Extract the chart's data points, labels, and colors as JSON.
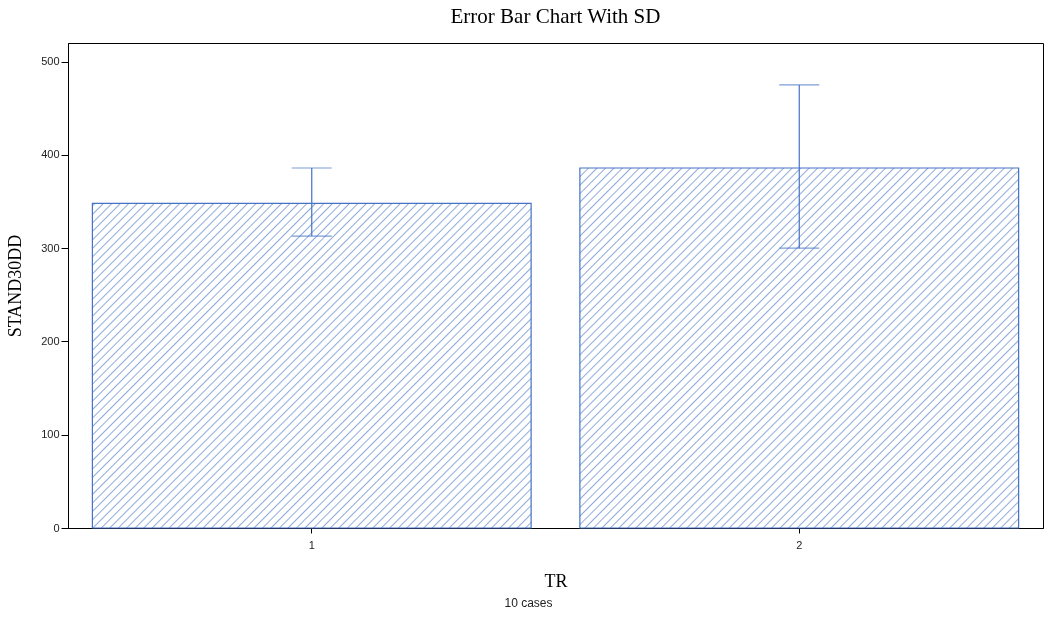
{
  "chart_data": {
    "type": "bar",
    "title": "Error Bar Chart With SD",
    "xlabel": "TR",
    "ylabel": "STAND30DD",
    "categories": [
      "1",
      "2"
    ],
    "values": [
      348,
      386
    ],
    "color": "#4472c4",
    "errors": [
      [
        313,
        386
      ],
      [
        300,
        475
      ]
    ],
    "ylim": [
      0,
      520
    ],
    "yticks": [
      0,
      100,
      200,
      300,
      400,
      500
    ],
    "grid": false,
    "annotations": [
      "10 cases"
    ]
  }
}
